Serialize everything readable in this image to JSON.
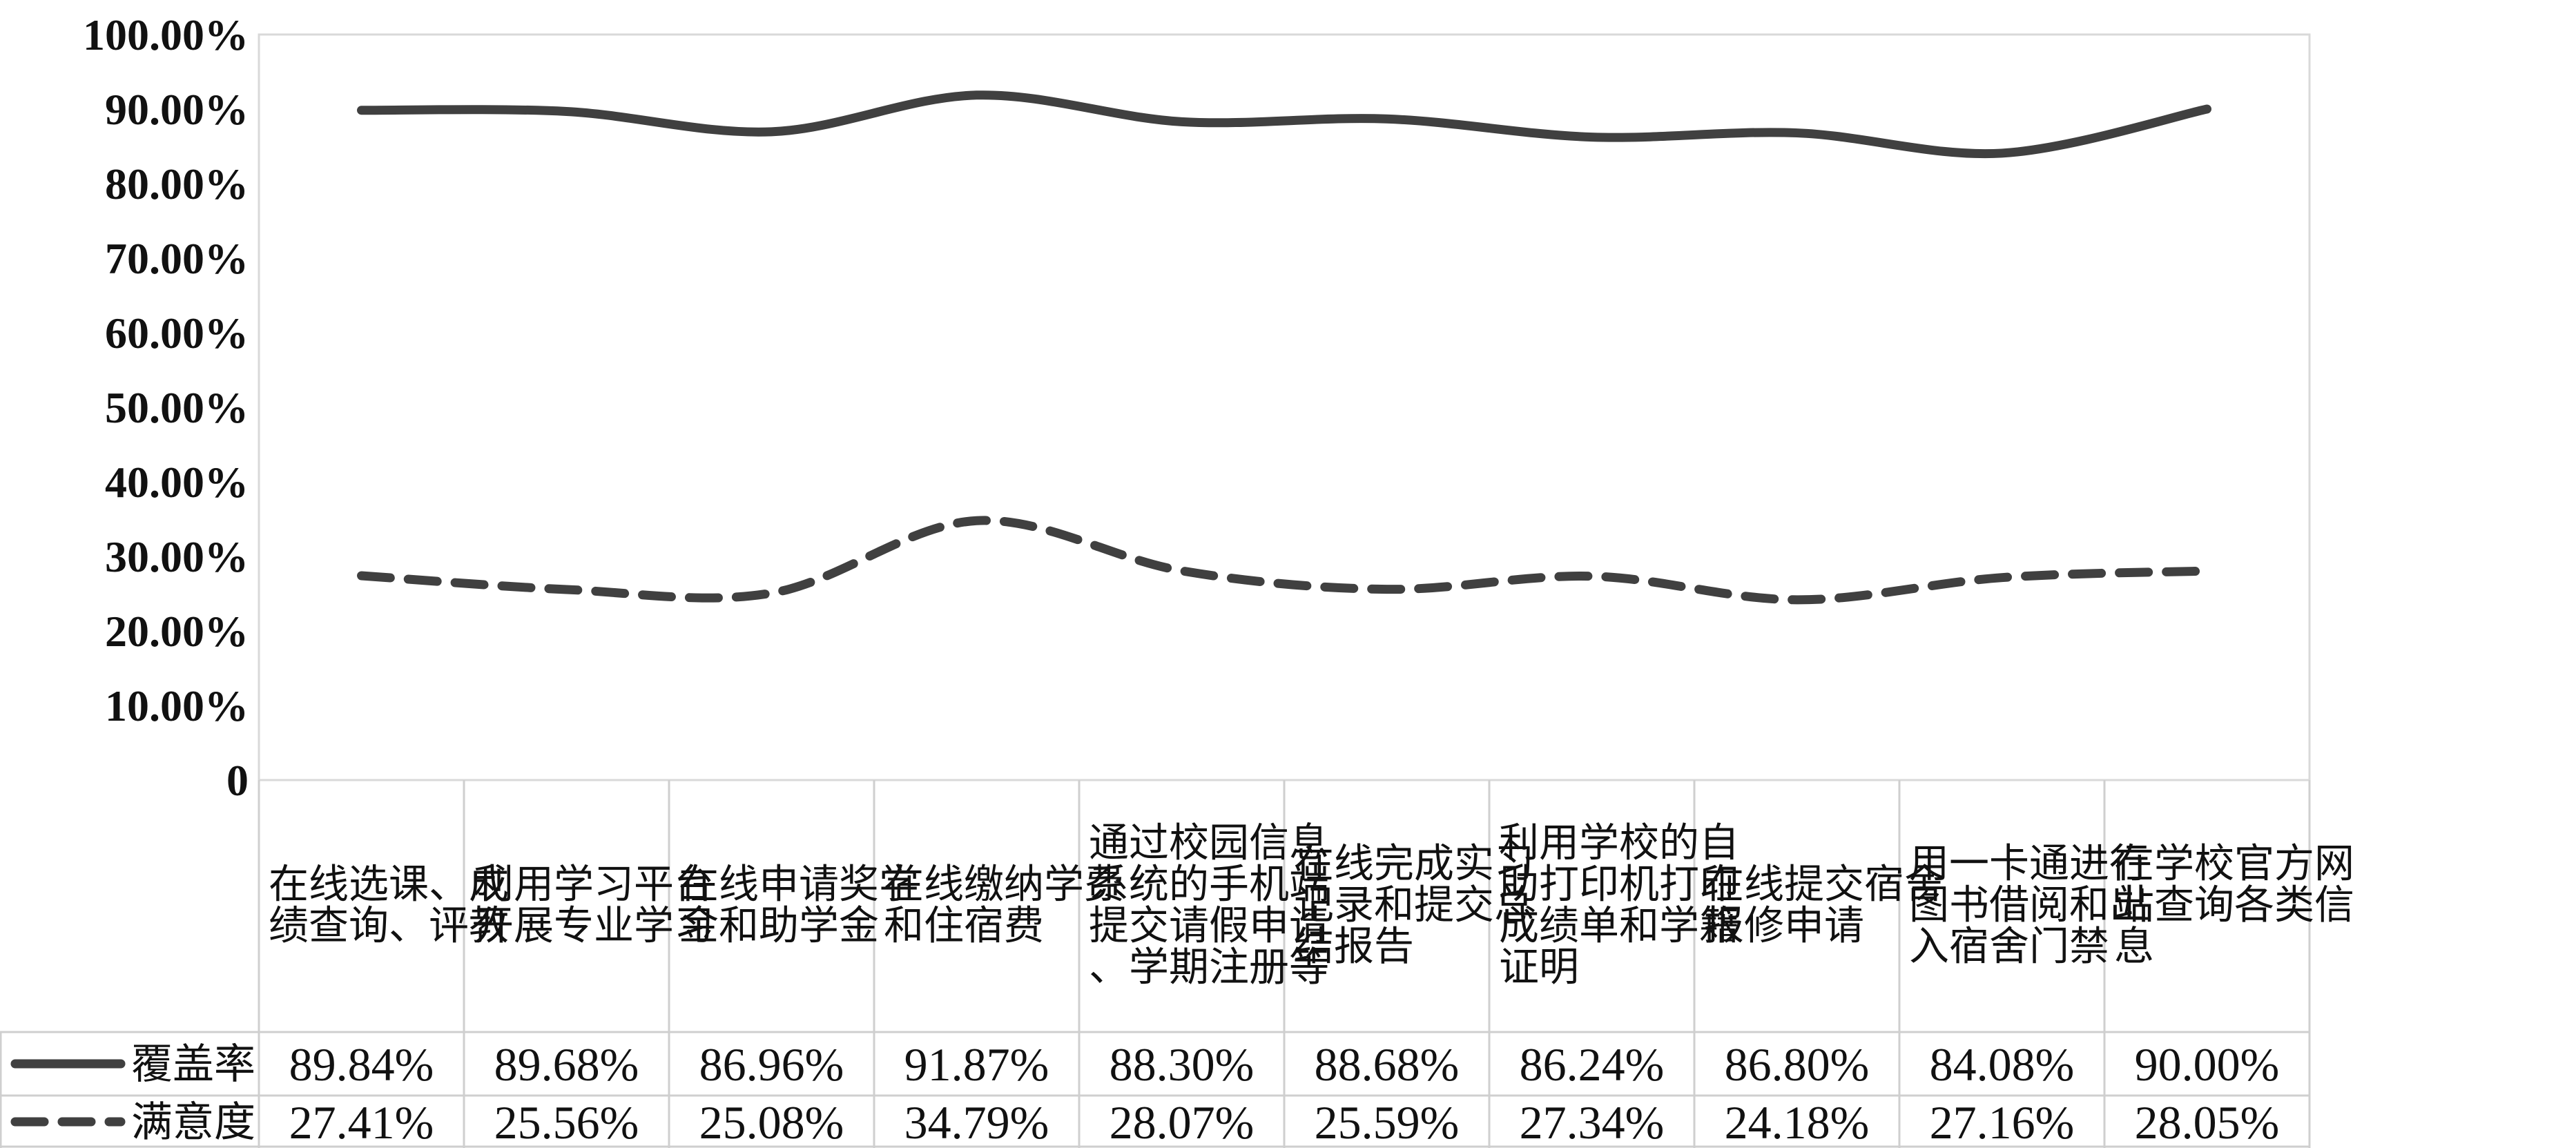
{
  "chart_data": {
    "type": "line",
    "categories": [
      "在线选课、成绩查询、评教",
      "利用学习平台开展专业学习",
      "在线申请奖学金和助学金",
      "在线缴纳学费和住宿费",
      "通过校园信息系统的手机端提交请假申请、学期注册等",
      "在线完成实习记录和提交总结报告",
      "利用学校的自助打印机打印成绩单和学籍证明",
      "在线提交宿舍报修申请",
      "用一卡通进行图书借阅和出入宿舍门禁",
      "在学校官方网站查询各类信息"
    ],
    "series": [
      {
        "name": "覆盖率",
        "style": "solid",
        "values": [
          89.84,
          89.68,
          86.96,
          91.87,
          88.3,
          88.68,
          86.24,
          86.8,
          84.08,
          90.0
        ],
        "labels": [
          "89.84%",
          "89.68%",
          "86.96%",
          "91.87%",
          "88.30%",
          "88.68%",
          "86.24%",
          "86.80%",
          "84.08%",
          "90.00%"
        ]
      },
      {
        "name": "满意度",
        "style": "dashed",
        "values": [
          27.41,
          25.56,
          25.08,
          34.79,
          28.07,
          25.59,
          27.34,
          24.18,
          27.16,
          28.05
        ],
        "labels": [
          "27.41%",
          "25.56%",
          "25.08%",
          "34.79%",
          "28.07%",
          "25.59%",
          "27.34%",
          "24.18%",
          "27.16%",
          "28.05%"
        ]
      }
    ],
    "ylim": [
      0,
      100
    ],
    "yticks": [
      "0",
      "10.00%",
      "20.00%",
      "30.00%",
      "40.00%",
      "50.00%",
      "60.00%",
      "70.00%",
      "80.00%",
      "90.00%",
      "100.00%"
    ],
    "grid": false,
    "legend": "data-table",
    "colors": {
      "line": "#404040"
    }
  }
}
